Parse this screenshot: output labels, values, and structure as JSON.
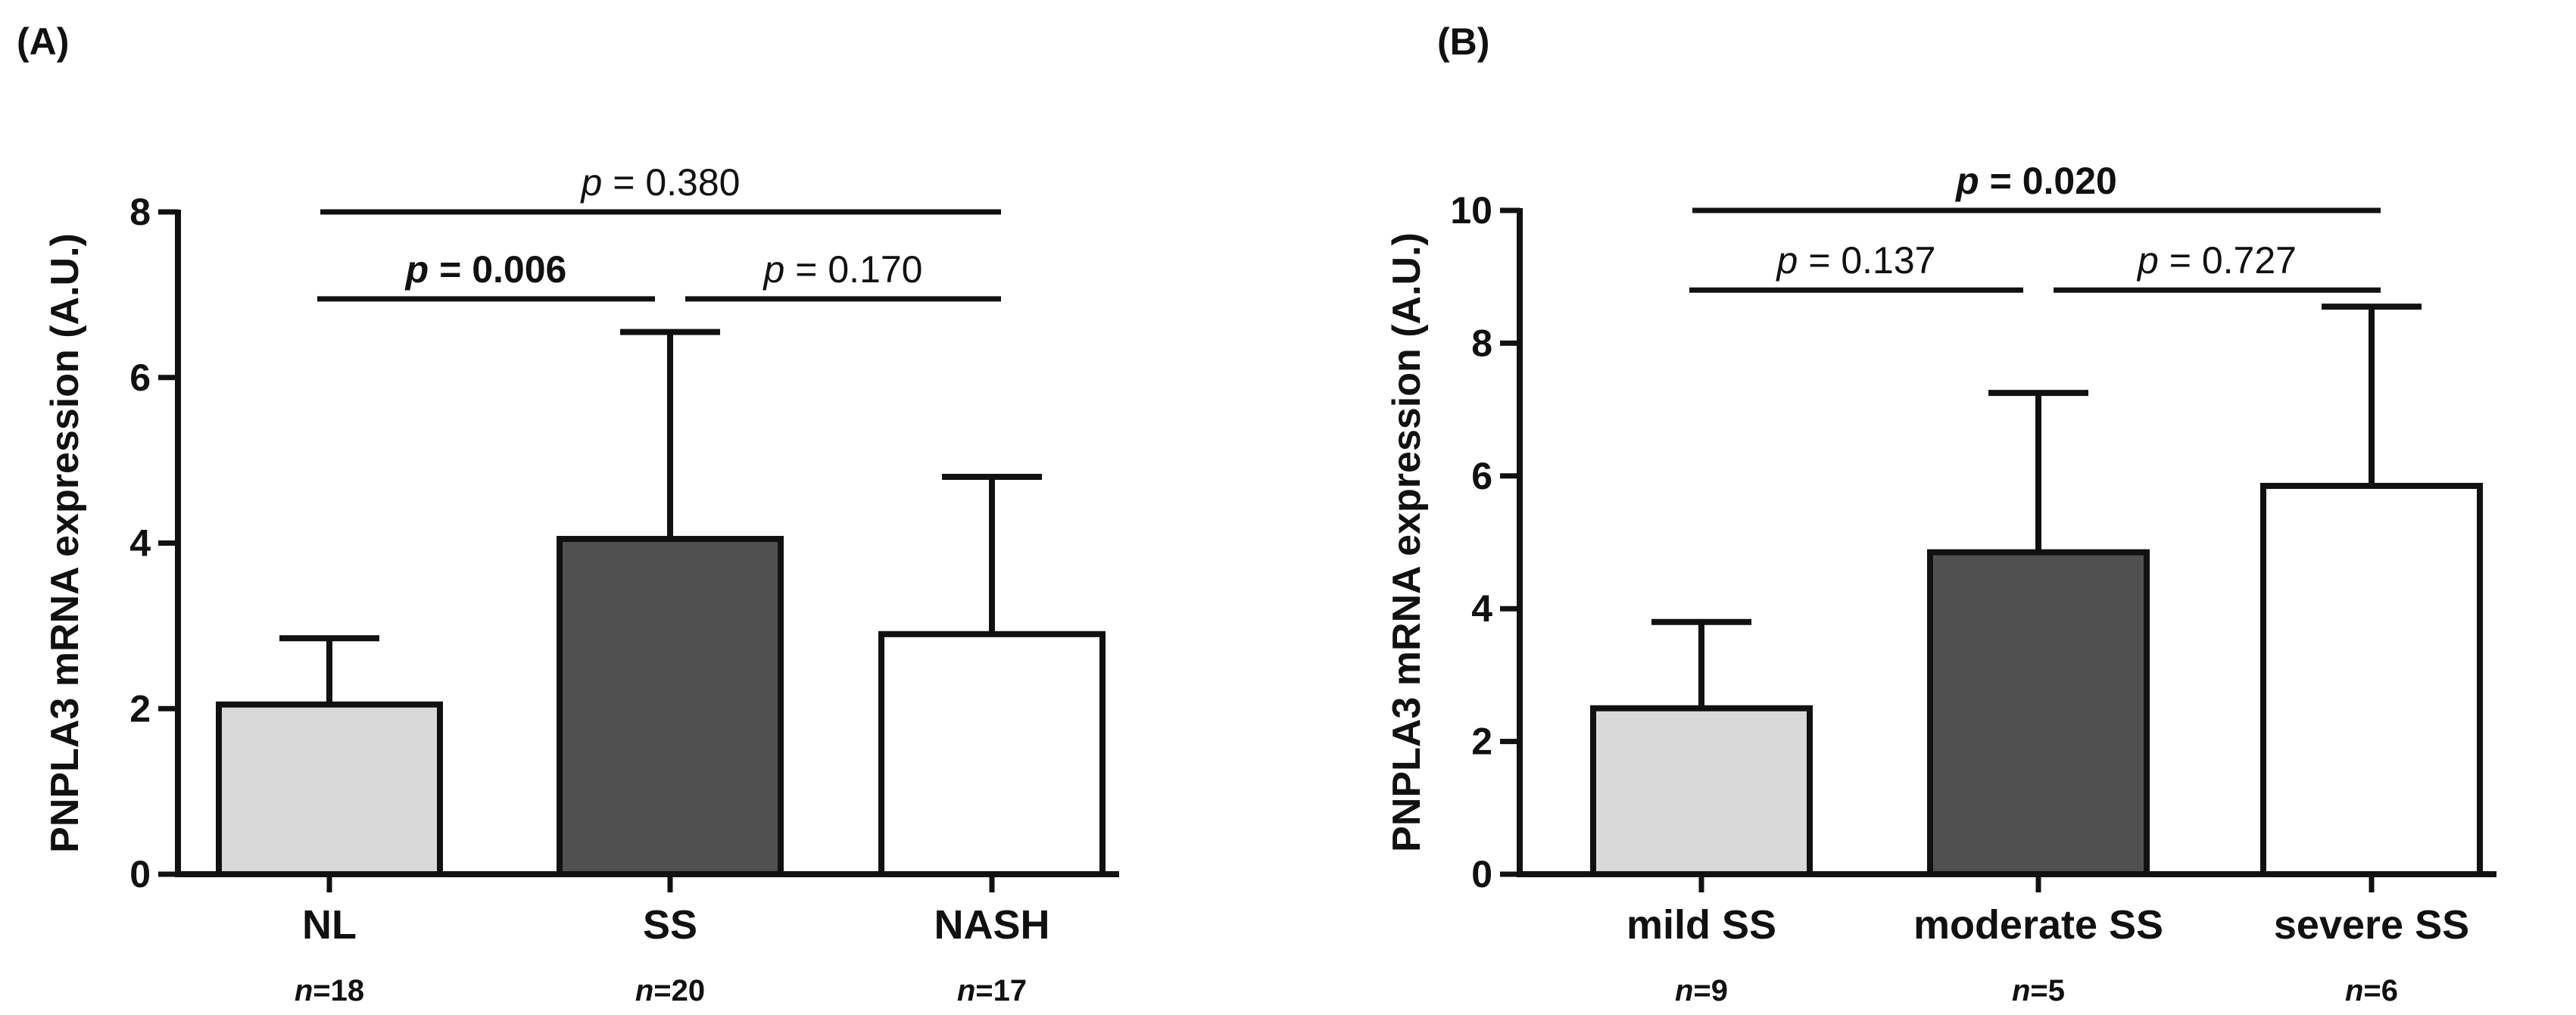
{
  "chart_data": [
    {
      "panel": "(A)",
      "type": "bar",
      "ylabel": "PNPLA3 mRNA expression (A.U.)",
      "ylim": [
        0,
        8
      ],
      "yticks": [
        "0",
        "2",
        "4",
        "6",
        "8"
      ],
      "categories": [
        "NL",
        "SS",
        "NASH"
      ],
      "values": [
        2.05,
        4.05,
        2.9
      ],
      "errors": [
        0.8,
        2.5,
        1.9
      ],
      "colors": [
        "#d9d9d9",
        "#505050",
        "#ffffff"
      ],
      "n_labels": [
        "n=18",
        "n=20",
        "n=17"
      ],
      "n_prefix": "n",
      "n_values": [
        "=18",
        "=20",
        "=17"
      ],
      "comparisons": [
        {
          "from": 0,
          "to": 2,
          "prefix": "p",
          "text": " = 0.380",
          "bold": false,
          "y": 8.0
        },
        {
          "from": 0,
          "to": 1,
          "prefix": "p",
          "text": " = 0.006",
          "bold": true,
          "y": 6.95
        },
        {
          "from": 1,
          "to": 2,
          "prefix": "p",
          "text": " = 0.170",
          "bold": false,
          "y": 6.95
        }
      ]
    },
    {
      "panel": "(B)",
      "type": "bar",
      "ylabel": "PNPLA3 mRNA expression (A.U.)",
      "ylim": [
        0,
        10
      ],
      "yticks": [
        "0",
        "2",
        "4",
        "6",
        "8",
        "10"
      ],
      "categories": [
        "mild SS",
        "moderate SS",
        "severe SS"
      ],
      "values": [
        2.5,
        4.85,
        5.85
      ],
      "errors": [
        1.3,
        2.4,
        2.7
      ],
      "colors": [
        "#d9d9d9",
        "#505050",
        "#ffffff"
      ],
      "n_labels": [
        "n=9",
        "n=5",
        "n=6"
      ],
      "n_prefix": "n",
      "n_values": [
        "=9",
        "=5",
        "=6"
      ],
      "comparisons": [
        {
          "from": 0,
          "to": 2,
          "prefix": "p",
          "text": " = 0.020",
          "bold": true,
          "y": 10.0
        },
        {
          "from": 0,
          "to": 1,
          "prefix": "p",
          "text": " = 0.137",
          "bold": false,
          "y": 8.8
        },
        {
          "from": 1,
          "to": 2,
          "prefix": "p",
          "text": " = 0.727",
          "bold": false,
          "y": 8.8
        }
      ]
    }
  ]
}
